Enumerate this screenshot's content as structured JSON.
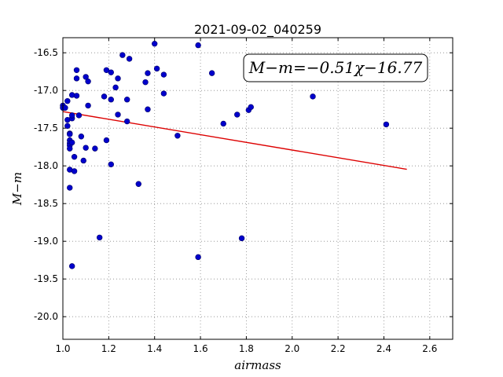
{
  "chart_data": {
    "type": "scatter",
    "title": "2021-09-02_040259",
    "xlabel": "airmass",
    "ylabel": "M−m",
    "xlim": [
      1.0,
      2.7
    ],
    "ylim": [
      -20.3,
      -16.3
    ],
    "x_ticks": [
      1.0,
      1.2,
      1.4,
      1.6,
      1.8,
      2.0,
      2.2,
      2.4,
      2.6
    ],
    "x_tick_labels": [
      "1.0",
      "1.2",
      "1.4",
      "1.6",
      "1.8",
      "2.0",
      "2.2",
      "2.4",
      "2.6"
    ],
    "y_ticks": [
      -16.5,
      -17.0,
      -17.5,
      -18.0,
      -18.5,
      -19.0,
      -19.5,
      -20.0
    ],
    "y_tick_labels": [
      "-16.5",
      "-17.0",
      "-17.5",
      "-18.0",
      "-18.5",
      "-19.0",
      "-19.5",
      "-20.0"
    ],
    "grid": true,
    "annotation": "M−m=−0.51χ−16.77",
    "annotation_position": "top-right",
    "point_color": "#0000cc",
    "fit_color": "#dd0000",
    "series": [
      {
        "values": [
          [
            1.0,
            -17.2
          ],
          [
            1.0,
            -17.23
          ],
          [
            1.01,
            -17.23
          ],
          [
            1.02,
            -17.47
          ],
          [
            1.02,
            -17.39
          ],
          [
            1.02,
            -17.14
          ],
          [
            1.03,
            -17.57
          ],
          [
            1.03,
            -17.58
          ],
          [
            1.03,
            -17.66
          ],
          [
            1.03,
            -17.7
          ],
          [
            1.03,
            -17.73
          ],
          [
            1.03,
            -17.77
          ],
          [
            1.03,
            -18.05
          ],
          [
            1.03,
            -18.29
          ],
          [
            1.04,
            -17.06
          ],
          [
            1.04,
            -17.37
          ],
          [
            1.04,
            -17.33
          ],
          [
            1.04,
            -17.69
          ],
          [
            1.04,
            -19.33
          ],
          [
            1.05,
            -18.07
          ],
          [
            1.05,
            -17.88
          ],
          [
            1.06,
            -16.73
          ],
          [
            1.06,
            -17.07
          ],
          [
            1.06,
            -16.84
          ],
          [
            1.07,
            -17.33
          ],
          [
            1.08,
            -17.61
          ],
          [
            1.09,
            -17.93
          ],
          [
            1.1,
            -16.82
          ],
          [
            1.1,
            -17.76
          ],
          [
            1.11,
            -16.88
          ],
          [
            1.11,
            -17.2
          ],
          [
            1.14,
            -17.77
          ],
          [
            1.16,
            -18.95
          ],
          [
            1.18,
            -17.08
          ],
          [
            1.19,
            -16.73
          ],
          [
            1.19,
            -17.66
          ],
          [
            1.21,
            -16.76
          ],
          [
            1.21,
            -17.98
          ],
          [
            1.21,
            -17.12
          ],
          [
            1.23,
            -16.96
          ],
          [
            1.24,
            -16.84
          ],
          [
            1.24,
            -17.32
          ],
          [
            1.26,
            -16.53
          ],
          [
            1.28,
            -17.41
          ],
          [
            1.28,
            -17.12
          ],
          [
            1.29,
            -16.58
          ],
          [
            1.33,
            -18.24
          ],
          [
            1.36,
            -16.89
          ],
          [
            1.37,
            -16.77
          ],
          [
            1.37,
            -17.25
          ],
          [
            1.4,
            -16.38
          ],
          [
            1.41,
            -16.71
          ],
          [
            1.44,
            -17.04
          ],
          [
            1.44,
            -16.79
          ],
          [
            1.5,
            -17.6
          ],
          [
            1.59,
            -16.4
          ],
          [
            1.59,
            -19.21
          ],
          [
            1.65,
            -16.77
          ],
          [
            1.7,
            -17.44
          ],
          [
            1.76,
            -17.32
          ],
          [
            1.78,
            -18.96
          ],
          [
            1.81,
            -17.26
          ],
          [
            1.82,
            -17.22
          ],
          [
            2.09,
            -17.08
          ],
          [
            2.41,
            -17.45
          ]
        ]
      }
    ],
    "fit_line": {
      "slope": -0.51,
      "intercept": -16.77,
      "x_range": [
        1.0,
        2.5
      ]
    }
  }
}
